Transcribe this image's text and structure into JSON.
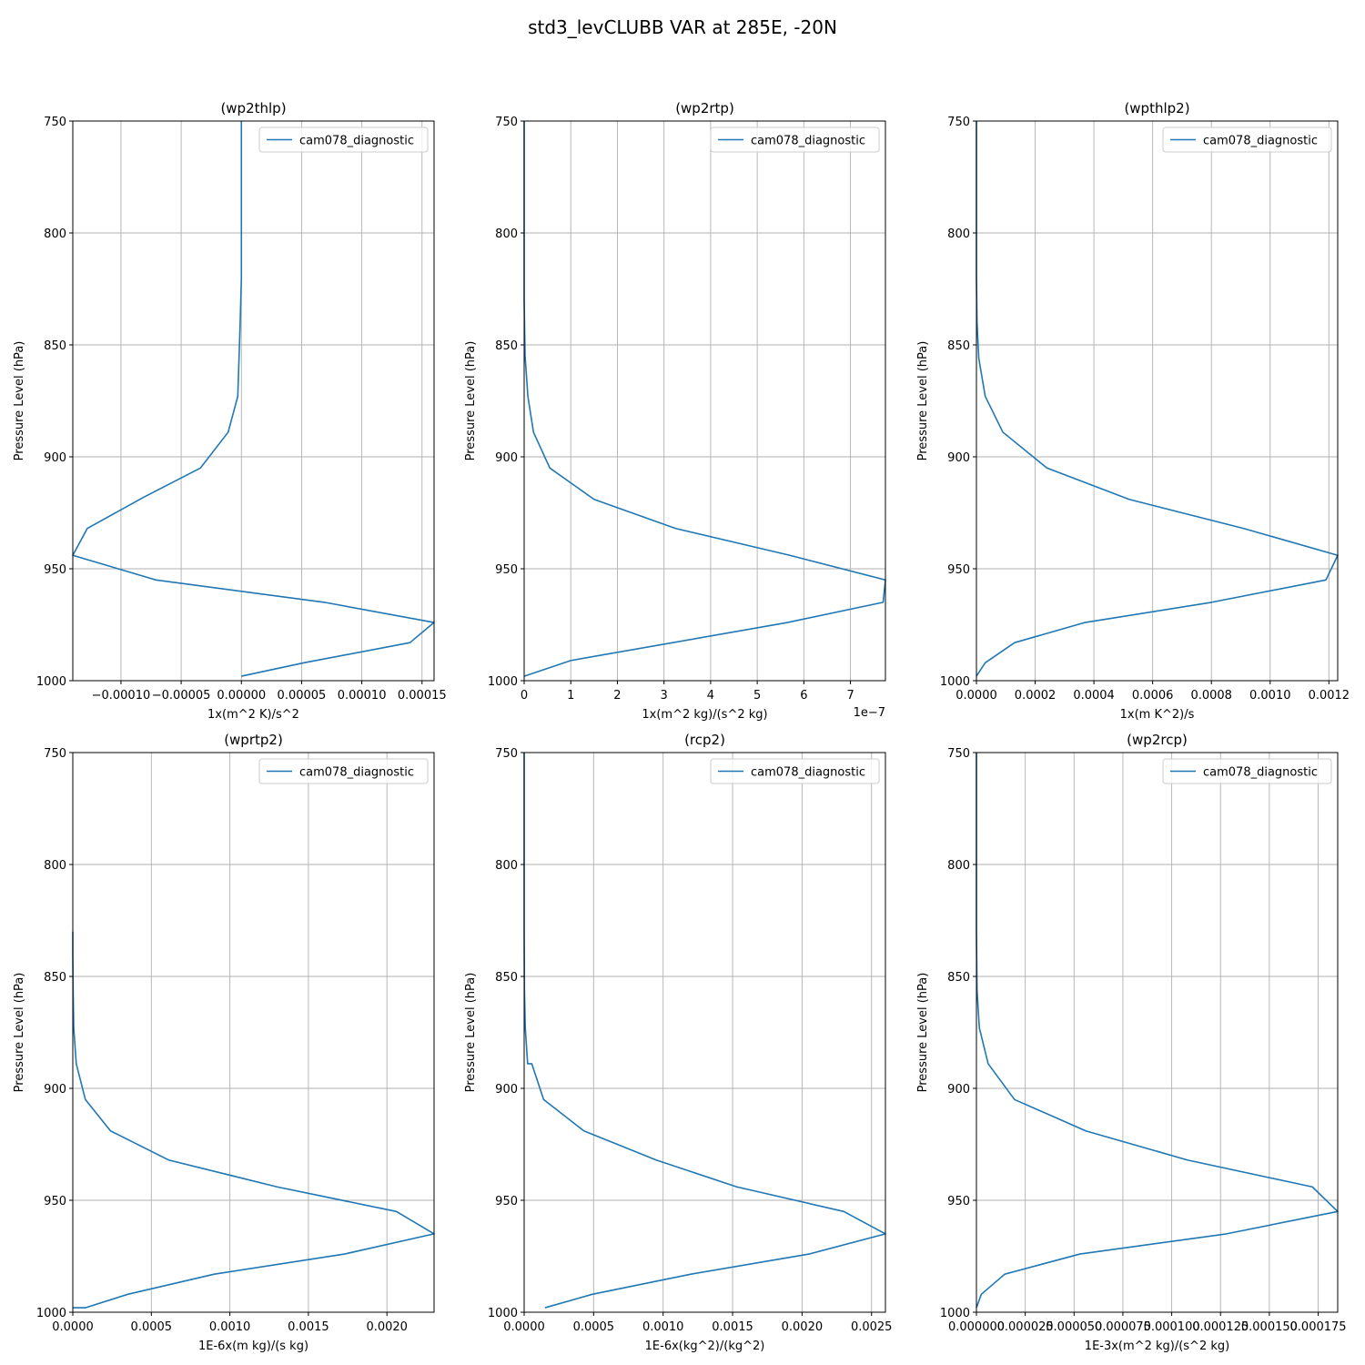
{
  "figure_title": "std3_levCLUBB VAR at 285E, -20N",
  "colors": {
    "series": "#1f77b4",
    "grid": "#b0b0b0",
    "background": "#ffffff"
  },
  "chart_data": [
    {
      "type": "line",
      "title": "(wp2thlp)",
      "xlabel": "1x(m^2 K)/s^2",
      "ylabel": "Pressure Level (hPa)",
      "offset_text": "",
      "legend_placement": "upper-right",
      "grid": true,
      "xlim": [
        -0.00014,
        0.00016
      ],
      "ylim": [
        1000,
        750
      ],
      "xticks": [
        -0.0001,
        -5e-05,
        0.0,
        5e-05,
        0.0001,
        0.00015
      ],
      "xtick_labels": [
        "−0.00010",
        "−0.00005",
        "0.00000",
        "0.00005",
        "0.00010",
        "0.00015"
      ],
      "yticks": [
        750,
        800,
        850,
        900,
        950,
        1000
      ],
      "ytick_labels": [
        "750",
        "800",
        "850",
        "900",
        "950",
        "1000"
      ],
      "series": [
        {
          "name": "cam078_diagnostic",
          "x": [
            0.0,
            0.0,
            0.0,
            -1e-06,
            -3e-06,
            -1.1e-05,
            -3.4e-05,
            -8.1e-05,
            -0.000128,
            -0.00014,
            -7.1e-05,
            6.9e-05,
            0.00016,
            0.00014,
            5.2e-05,
            0.0
          ],
          "y": [
            750,
            800,
            820,
            840,
            873,
            889,
            905,
            918,
            932,
            944,
            955,
            965,
            974,
            983,
            992,
            998
          ]
        }
      ]
    },
    {
      "type": "line",
      "title": "(wp2rtp)",
      "xlabel": "1x(m^2 kg)/(s^2 kg)",
      "ylabel": "Pressure Level (hPa)",
      "offset_text": "1e−7",
      "legend_placement": "upper-right",
      "grid": true,
      "xlim": [
        0,
        7.75
      ],
      "ylim": [
        1000,
        750
      ],
      "xticks": [
        0,
        1,
        2,
        3,
        4,
        5,
        6,
        7
      ],
      "xtick_labels": [
        "0",
        "1",
        "2",
        "3",
        "4",
        "5",
        "6",
        "7"
      ],
      "yticks": [
        750,
        800,
        850,
        900,
        950,
        1000
      ],
      "ytick_labels": [
        "750",
        "800",
        "850",
        "900",
        "950",
        "1000"
      ],
      "series": [
        {
          "name": "cam078_diagnostic",
          "x": [
            0.0,
            0.0,
            0.0,
            0.02,
            0.08,
            0.2,
            0.55,
            1.5,
            3.25,
            5.7,
            7.75,
            7.7,
            5.65,
            1.0,
            0.0
          ],
          "y": [
            750,
            800,
            830,
            855,
            873,
            889,
            905,
            919,
            932,
            944,
            955,
            965,
            974,
            991,
            998
          ]
        }
      ]
    },
    {
      "type": "line",
      "title": "(wpthlp2)",
      "xlabel": "1x(m K^2)/s",
      "ylabel": "Pressure Level (hPa)",
      "offset_text": "",
      "legend_placement": "upper-right",
      "grid": true,
      "xlim": [
        0,
        0.00123
      ],
      "ylim": [
        1000,
        750
      ],
      "xticks": [
        0,
        0.0002,
        0.0004,
        0.0006,
        0.0008,
        0.001,
        0.0012
      ],
      "xtick_labels": [
        "0.0000",
        "0.0002",
        "0.0004",
        "0.0006",
        "0.0008",
        "0.0010",
        "0.0012"
      ],
      "yticks": [
        750,
        800,
        850,
        900,
        950,
        1000
      ],
      "ytick_labels": [
        "750",
        "800",
        "850",
        "900",
        "950",
        "1000"
      ],
      "series": [
        {
          "name": "cam078_diagnostic",
          "x": [
            0.0,
            0.0,
            0.0,
            2e-06,
            8e-06,
            3e-05,
            9e-05,
            0.00024,
            0.00052,
            0.00091,
            0.00123,
            0.00119,
            0.0008,
            0.00037,
            0.00013,
            3e-05,
            0.0
          ],
          "y": [
            750,
            800,
            820,
            840,
            856,
            873,
            889,
            905,
            919,
            932,
            944,
            955,
            965,
            974,
            983,
            992,
            998
          ]
        }
      ]
    },
    {
      "type": "line",
      "title": "(wprtp2)",
      "xlabel": "1E-6x(m kg)/(s kg)",
      "ylabel": "Pressure Level (hPa)",
      "offset_text": "",
      "legend_placement": "upper-right",
      "grid": true,
      "xlim": [
        0,
        0.0023
      ],
      "ylim": [
        1000,
        750
      ],
      "xticks": [
        0,
        0.0005,
        0.001,
        0.0015,
        0.002
      ],
      "xtick_labels": [
        "0.0000",
        "0.0005",
        "0.0010",
        "0.0015",
        "0.0020"
      ],
      "yticks": [
        750,
        800,
        850,
        900,
        950,
        1000
      ],
      "ytick_labels": [
        "750",
        "800",
        "850",
        "900",
        "950",
        "1000"
      ],
      "series": [
        {
          "name": "cam078_diagnostic",
          "x": [
            0.0,
            0.0,
            2e-06,
            6e-06,
            2.2e-05,
            8e-05,
            0.00024,
            0.00061,
            0.0013,
            0.00206,
            0.0023,
            0.00173,
            0.0009,
            0.00035,
            8e-05,
            0.0
          ],
          "y": [
            830,
            840,
            856,
            873,
            889,
            905,
            919,
            932,
            944,
            955,
            965,
            974,
            983,
            992,
            998,
            998
          ]
        }
      ]
    },
    {
      "type": "line",
      "title": "(rcp2)",
      "xlabel": "1E-6x(kg^2)/(kg^2)",
      "ylabel": "Pressure Level (hPa)",
      "offset_text": "",
      "legend_placement": "upper-right",
      "grid": true,
      "xlim": [
        0,
        0.0026
      ],
      "ylim": [
        1000,
        750
      ],
      "xticks": [
        0,
        0.0005,
        0.001,
        0.0015,
        0.002,
        0.0025
      ],
      "xtick_labels": [
        "0.0000",
        "0.0005",
        "0.0010",
        "0.0015",
        "0.0020",
        "0.0025"
      ],
      "yticks": [
        750,
        800,
        850,
        900,
        950,
        1000
      ],
      "ytick_labels": [
        "750",
        "800",
        "850",
        "900",
        "950",
        "1000"
      ],
      "series": [
        {
          "name": "cam078_diagnostic",
          "x": [
            0.0,
            0.0,
            0.0,
            2e-06,
            8e-06,
            2.5e-05,
            5.5e-05,
            0.00014,
            0.00043,
            0.00095,
            0.00153,
            0.0023,
            0.0026,
            0.00205,
            0.0012,
            0.00049,
            0.00015
          ],
          "y": [
            750,
            800,
            830,
            856,
            873,
            889,
            889,
            905,
            919,
            932,
            944,
            955,
            965,
            974,
            983,
            992,
            998
          ]
        }
      ]
    },
    {
      "type": "line",
      "title": "(wp2rcp)",
      "xlabel": "1E-3x(m^2 kg)/(s^2 kg)",
      "ylabel": "Pressure Level (hPa)",
      "offset_text": "",
      "legend_placement": "upper-right",
      "grid": true,
      "xlim": [
        0,
        0.000185
      ],
      "ylim": [
        1000,
        750
      ],
      "xticks": [
        0,
        2.5e-05,
        5e-05,
        7.5e-05,
        0.0001,
        0.000125,
        0.00015,
        0.000175
      ],
      "xtick_labels": [
        "0.000000",
        "0.000025",
        "0.000050",
        "0.000075",
        "0.000100",
        "0.000125",
        "0.000150",
        "0.000175"
      ],
      "yticks": [
        750,
        800,
        850,
        900,
        950,
        1000
      ],
      "ytick_labels": [
        "750",
        "800",
        "850",
        "900",
        "950",
        "1000"
      ],
      "series": [
        {
          "name": "cam078_diagnostic",
          "x": [
            0.0,
            0.0,
            0.0,
            3e-07,
            1.5e-06,
            6e-06,
            1.95e-05,
            5.6e-05,
            0.000108,
            0.000172,
            0.000185,
            0.000128,
            5.3e-05,
            1.45e-05,
            2.5e-06,
            0.0
          ],
          "y": [
            750,
            800,
            830,
            856,
            873,
            889,
            905,
            919,
            932,
            944,
            955,
            965,
            974,
            983,
            992,
            998
          ]
        }
      ]
    }
  ]
}
